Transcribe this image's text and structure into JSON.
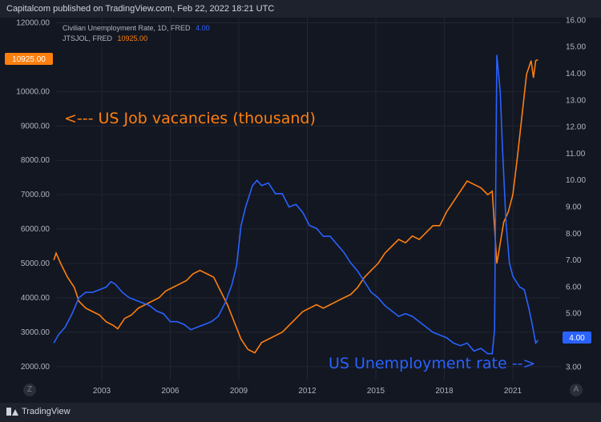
{
  "header": {
    "publisher": "Capitalcom published on TradingView.com, Feb 22, 2022 18:21 UTC"
  },
  "legend": {
    "unemployment": {
      "label": "Civilian Unemployment Rate, 1D, FRED",
      "value": "4.00"
    },
    "vacancies": {
      "label": "JTSJOL, FRED",
      "value": "10925.00"
    }
  },
  "footer": {
    "brand": "TradingView"
  },
  "controls": {
    "left_button": "Z",
    "right_button": "A"
  },
  "colors": {
    "vacancies": "#ff7f0e",
    "unemployment": "#2962ff",
    "background": "#131722",
    "grid": "#222633"
  },
  "chart_data": {
    "type": "line",
    "x_ticks": [
      "2003",
      "2006",
      "2009",
      "2012",
      "2015",
      "2018",
      "2021"
    ],
    "left_axis": {
      "ticks": [
        "2000.00",
        "3000.00",
        "4000.00",
        "5000.00",
        "6000.00",
        "7000.00",
        "8000.00",
        "9000.00",
        "10000.00",
        "12000.00"
      ],
      "range": [
        1600,
        12150
      ],
      "last_value": "10925.00"
    },
    "right_axis": {
      "ticks": [
        "3.00",
        "4.00",
        "5.00",
        "6.00",
        "7.00",
        "8.00",
        "9.00",
        "10.00",
        "11.00",
        "12.00",
        "13.00",
        "14.00",
        "15.00",
        "16.00"
      ],
      "range": [
        2.5,
        16.1
      ],
      "last_value": "4.00"
    },
    "annotations": {
      "vacancies": "<--- US Job vacancies (thousand)",
      "unemployment": "US Unemployment rate -->"
    },
    "series": [
      {
        "name": "JTSJOL, FRED",
        "axis": "left",
        "points": [
          [
            2000.9,
            5100
          ],
          [
            2001.0,
            5300
          ],
          [
            2001.2,
            5000
          ],
          [
            2001.5,
            4600
          ],
          [
            2001.8,
            4300
          ],
          [
            2002.0,
            3900
          ],
          [
            2002.3,
            3700
          ],
          [
            2002.6,
            3600
          ],
          [
            2002.9,
            3500
          ],
          [
            2003.2,
            3300
          ],
          [
            2003.5,
            3200
          ],
          [
            2003.7,
            3100
          ],
          [
            2004.0,
            3400
          ],
          [
            2004.3,
            3500
          ],
          [
            2004.6,
            3700
          ],
          [
            2004.9,
            3800
          ],
          [
            2005.2,
            3900
          ],
          [
            2005.5,
            4000
          ],
          [
            2005.8,
            4200
          ],
          [
            2006.1,
            4300
          ],
          [
            2006.4,
            4400
          ],
          [
            2006.7,
            4500
          ],
          [
            2007.0,
            4700
          ],
          [
            2007.3,
            4800
          ],
          [
            2007.6,
            4700
          ],
          [
            2007.9,
            4600
          ],
          [
            2008.2,
            4200
          ],
          [
            2008.5,
            3800
          ],
          [
            2008.8,
            3300
          ],
          [
            2009.1,
            2800
          ],
          [
            2009.4,
            2500
          ],
          [
            2009.7,
            2400
          ],
          [
            2010.0,
            2700
          ],
          [
            2010.3,
            2800
          ],
          [
            2010.6,
            2900
          ],
          [
            2010.9,
            3000
          ],
          [
            2011.2,
            3200
          ],
          [
            2011.5,
            3400
          ],
          [
            2011.8,
            3600
          ],
          [
            2012.1,
            3700
          ],
          [
            2012.4,
            3800
          ],
          [
            2012.7,
            3700
          ],
          [
            2013.0,
            3800
          ],
          [
            2013.3,
            3900
          ],
          [
            2013.6,
            4000
          ],
          [
            2013.9,
            4100
          ],
          [
            2014.2,
            4300
          ],
          [
            2014.5,
            4600
          ],
          [
            2014.8,
            4800
          ],
          [
            2015.1,
            5000
          ],
          [
            2015.4,
            5300
          ],
          [
            2015.7,
            5500
          ],
          [
            2016.0,
            5700
          ],
          [
            2016.3,
            5600
          ],
          [
            2016.6,
            5800
          ],
          [
            2016.9,
            5700
          ],
          [
            2017.2,
            5900
          ],
          [
            2017.5,
            6100
          ],
          [
            2017.8,
            6100
          ],
          [
            2018.1,
            6500
          ],
          [
            2018.4,
            6800
          ],
          [
            2018.7,
            7100
          ],
          [
            2019.0,
            7400
          ],
          [
            2019.3,
            7300
          ],
          [
            2019.6,
            7200
          ],
          [
            2019.9,
            7000
          ],
          [
            2020.1,
            7100
          ],
          [
            2020.3,
            5000
          ],
          [
            2020.4,
            5400
          ],
          [
            2020.6,
            6200
          ],
          [
            2020.8,
            6500
          ],
          [
            2021.0,
            7000
          ],
          [
            2021.2,
            8100
          ],
          [
            2021.4,
            9300
          ],
          [
            2021.6,
            10500
          ],
          [
            2021.8,
            10900
          ],
          [
            2021.9,
            10400
          ],
          [
            2022.0,
            10900
          ],
          [
            2022.1,
            10925
          ]
        ]
      },
      {
        "name": "Civilian Unemployment Rate, 1D, FRED",
        "axis": "right",
        "points": [
          [
            2000.9,
            3.9
          ],
          [
            2001.1,
            4.2
          ],
          [
            2001.4,
            4.5
          ],
          [
            2001.7,
            5.0
          ],
          [
            2002.0,
            5.6
          ],
          [
            2002.3,
            5.8
          ],
          [
            2002.6,
            5.8
          ],
          [
            2002.9,
            5.9
          ],
          [
            2003.2,
            6.0
          ],
          [
            2003.4,
            6.2
          ],
          [
            2003.6,
            6.1
          ],
          [
            2003.9,
            5.8
          ],
          [
            2004.2,
            5.6
          ],
          [
            2004.5,
            5.5
          ],
          [
            2004.8,
            5.4
          ],
          [
            2005.1,
            5.3
          ],
          [
            2005.4,
            5.1
          ],
          [
            2005.7,
            5.0
          ],
          [
            2006.0,
            4.7
          ],
          [
            2006.3,
            4.7
          ],
          [
            2006.6,
            4.6
          ],
          [
            2006.9,
            4.4
          ],
          [
            2007.2,
            4.5
          ],
          [
            2007.5,
            4.6
          ],
          [
            2007.8,
            4.7
          ],
          [
            2008.1,
            4.9
          ],
          [
            2008.4,
            5.4
          ],
          [
            2008.7,
            6.1
          ],
          [
            2008.9,
            6.8
          ],
          [
            2009.1,
            8.3
          ],
          [
            2009.3,
            9.0
          ],
          [
            2009.6,
            9.8
          ],
          [
            2009.8,
            10.0
          ],
          [
            2010.0,
            9.8
          ],
          [
            2010.3,
            9.9
          ],
          [
            2010.6,
            9.5
          ],
          [
            2010.9,
            9.5
          ],
          [
            2011.2,
            9.0
          ],
          [
            2011.5,
            9.1
          ],
          [
            2011.8,
            8.8
          ],
          [
            2012.1,
            8.3
          ],
          [
            2012.4,
            8.2
          ],
          [
            2012.7,
            7.9
          ],
          [
            2013.0,
            7.9
          ],
          [
            2013.3,
            7.6
          ],
          [
            2013.6,
            7.3
          ],
          [
            2013.9,
            6.9
          ],
          [
            2014.2,
            6.6
          ],
          [
            2014.5,
            6.2
          ],
          [
            2014.8,
            5.8
          ],
          [
            2015.1,
            5.6
          ],
          [
            2015.4,
            5.3
          ],
          [
            2015.7,
            5.1
          ],
          [
            2016.0,
            4.9
          ],
          [
            2016.3,
            5.0
          ],
          [
            2016.6,
            4.9
          ],
          [
            2016.9,
            4.7
          ],
          [
            2017.2,
            4.5
          ],
          [
            2017.5,
            4.3
          ],
          [
            2017.8,
            4.2
          ],
          [
            2018.1,
            4.1
          ],
          [
            2018.4,
            3.9
          ],
          [
            2018.7,
            3.8
          ],
          [
            2019.0,
            3.9
          ],
          [
            2019.3,
            3.6
          ],
          [
            2019.6,
            3.7
          ],
          [
            2019.9,
            3.5
          ],
          [
            2020.1,
            3.5
          ],
          [
            2020.2,
            4.4
          ],
          [
            2020.3,
            14.7
          ],
          [
            2020.45,
            13.3
          ],
          [
            2020.55,
            11.1
          ],
          [
            2020.7,
            8.4
          ],
          [
            2020.85,
            6.9
          ],
          [
            2021.0,
            6.4
          ],
          [
            2021.3,
            6.0
          ],
          [
            2021.5,
            5.9
          ],
          [
            2021.7,
            5.2
          ],
          [
            2021.85,
            4.6
          ],
          [
            2022.0,
            3.9
          ],
          [
            2022.1,
            4.0
          ]
        ]
      }
    ]
  }
}
